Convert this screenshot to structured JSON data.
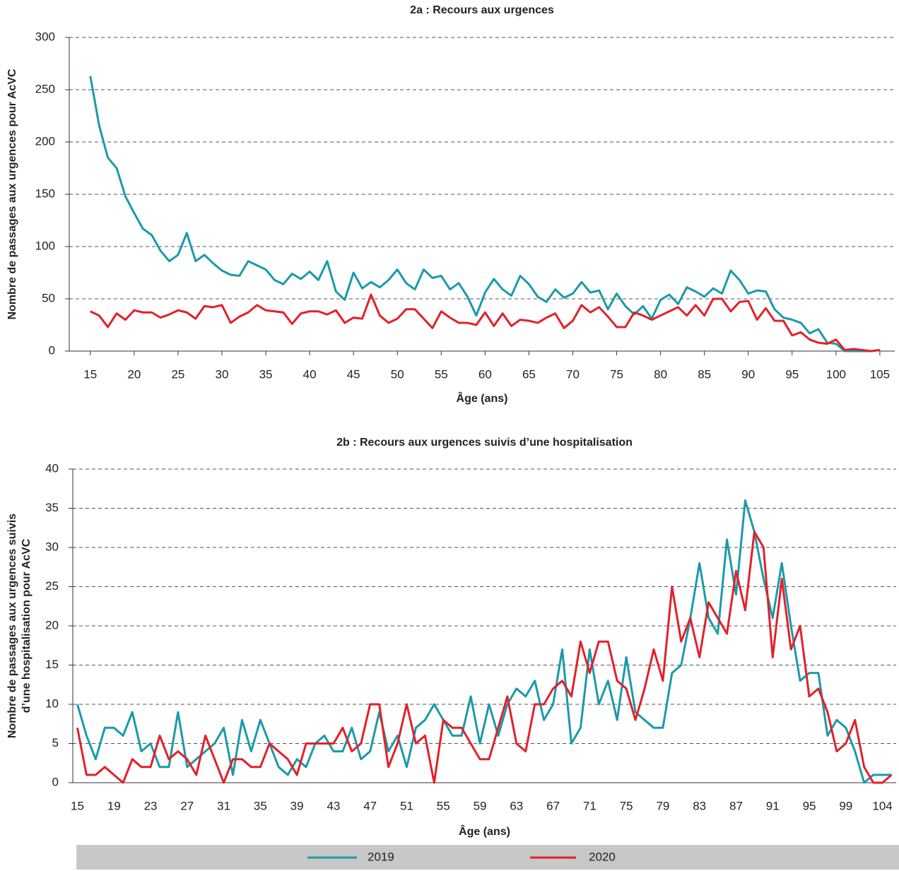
{
  "chart_data": [
    {
      "type": "line",
      "title": "2a : Recours aux urgences",
      "xlabel": "Âge (ans)",
      "ylabel": [
        "Nombre de passages aux urgences pour AcVC"
      ],
      "x": [
        15,
        16,
        17,
        18,
        19,
        20,
        21,
        22,
        23,
        24,
        25,
        26,
        27,
        28,
        29,
        30,
        31,
        32,
        33,
        34,
        35,
        36,
        37,
        38,
        39,
        40,
        41,
        42,
        43,
        44,
        45,
        46,
        47,
        48,
        49,
        50,
        51,
        52,
        53,
        54,
        55,
        56,
        57,
        58,
        59,
        60,
        61,
        62,
        63,
        64,
        65,
        66,
        67,
        68,
        69,
        70,
        71,
        72,
        73,
        74,
        75,
        76,
        77,
        78,
        79,
        80,
        81,
        82,
        83,
        84,
        85,
        86,
        87,
        88,
        89,
        90,
        91,
        92,
        93,
        94,
        95,
        96,
        97,
        98,
        99,
        100,
        101,
        102,
        103,
        104,
        105
      ],
      "series": [
        {
          "name": "2019",
          "color": "#1a9aaa",
          "values": [
            263,
            216,
            185,
            175,
            148,
            132,
            117,
            111,
            96,
            86,
            92,
            113,
            86,
            92,
            84,
            77,
            73,
            72,
            86,
            82,
            78,
            68,
            64,
            74,
            69,
            76,
            68,
            86,
            57,
            49,
            75,
            60,
            66,
            61,
            68,
            78,
            65,
            59,
            78,
            70,
            72,
            59,
            65,
            52,
            34,
            56,
            69,
            59,
            53,
            72,
            64,
            52,
            47,
            59,
            51,
            55,
            66,
            56,
            58,
            40,
            55,
            43,
            35,
            43,
            31,
            49,
            54,
            45,
            61,
            57,
            52,
            60,
            55,
            77,
            68,
            55,
            58,
            57,
            40,
            32,
            30,
            27,
            17,
            21,
            8,
            7,
            0,
            0,
            0,
            0,
            1
          ]
        },
        {
          "name": "2020",
          "color": "#e3202a",
          "values": [
            38,
            34,
            23,
            36,
            30,
            39,
            37,
            37,
            32,
            35,
            39,
            37,
            31,
            43,
            42,
            44,
            27,
            33,
            37,
            44,
            39,
            38,
            37,
            26,
            36,
            38,
            38,
            35,
            39,
            27,
            32,
            31,
            54,
            34,
            27,
            31,
            40,
            40,
            31,
            22,
            38,
            32,
            27,
            27,
            25,
            37,
            24,
            36,
            24,
            30,
            29,
            27,
            32,
            36,
            22,
            29,
            44,
            37,
            42,
            33,
            23,
            23,
            37,
            34,
            30,
            34,
            38,
            42,
            34,
            44,
            34,
            50,
            50,
            38,
            47,
            48,
            30,
            41,
            29,
            29,
            15,
            18,
            11,
            8,
            7,
            11,
            1,
            2,
            1,
            0,
            1
          ]
        }
      ],
      "xlim": [
        12.6,
        106.7
      ],
      "xticks": [
        15,
        20,
        25,
        30,
        35,
        40,
        45,
        50,
        55,
        60,
        65,
        70,
        75,
        80,
        85,
        90,
        95,
        100,
        105
      ],
      "ylim": [
        0,
        300
      ],
      "yticks": [
        0,
        50,
        100,
        150,
        200,
        250,
        300
      ],
      "grid": true
    },
    {
      "type": "line",
      "title": "2b : Recours aux urgences suivis d’une hospitalisation",
      "xlabel": "Âge (ans)",
      "ylabel": [
        "Nombre de passages aux urgences suivis",
        "d’une hospitalisation pour AcVC"
      ],
      "categories": [
        "15",
        null,
        null,
        null,
        "19",
        null,
        null,
        null,
        "23",
        null,
        null,
        null,
        "27",
        null,
        null,
        null,
        "31",
        null,
        null,
        null,
        "35",
        null,
        null,
        null,
        "39",
        null,
        null,
        null,
        "43",
        null,
        null,
        null,
        "47",
        null,
        null,
        null,
        "51",
        null,
        null,
        null,
        "55",
        null,
        null,
        null,
        "59",
        null,
        null,
        null,
        "63",
        null,
        null,
        null,
        "67",
        null,
        null,
        null,
        "71",
        null,
        null,
        null,
        "75",
        null,
        null,
        null,
        "79",
        null,
        null,
        null,
        "83",
        null,
        null,
        null,
        "87",
        null,
        null,
        null,
        "91",
        null,
        null,
        null,
        "95",
        null,
        null,
        null,
        "99",
        null,
        null,
        null,
        "104",
        null
      ],
      "series": [
        {
          "color": "#1a9aaa",
          "values": [
            10,
            6,
            3,
            7,
            7,
            6,
            9,
            4,
            5,
            2,
            2,
            9,
            2,
            3,
            4,
            5,
            7,
            1,
            8,
            4,
            8,
            5,
            2,
            1,
            3,
            2,
            5,
            6,
            4,
            4,
            7,
            3,
            4,
            9,
            4,
            6,
            2,
            7,
            8,
            10,
            8,
            6,
            6,
            11,
            5,
            10,
            6,
            10,
            12,
            11,
            13,
            8,
            10,
            17,
            5,
            7,
            17,
            10,
            13,
            8,
            16,
            9,
            8,
            7,
            7,
            14,
            15,
            21,
            28,
            21,
            19,
            31,
            24,
            36,
            32,
            26,
            21,
            28,
            20,
            13,
            14,
            14,
            6,
            8,
            7,
            4,
            0,
            1,
            1,
            1
          ]
        },
        {
          "color": "#e3202a",
          "values": [
            7,
            1,
            1,
            2,
            1,
            0,
            3,
            2,
            2,
            6,
            3,
            4,
            3,
            1,
            6,
            3,
            0,
            3,
            3,
            2,
            2,
            5,
            4,
            3,
            1,
            5,
            5,
            5,
            5,
            7,
            4,
            5,
            10,
            10,
            2,
            5,
            10,
            5,
            6,
            0,
            8,
            7,
            7,
            5,
            3,
            3,
            7,
            11,
            5,
            4,
            10,
            10,
            12,
            13,
            11,
            18,
            14,
            18,
            18,
            13,
            12,
            8,
            12,
            17,
            13,
            25,
            18,
            21,
            16,
            23,
            21,
            19,
            27,
            22,
            32,
            30,
            16,
            26,
            17,
            20,
            11,
            12,
            9,
            4,
            5,
            8,
            2,
            0,
            0,
            1
          ]
        }
      ],
      "ylim": [
        0,
        40
      ],
      "yticks": [
        0,
        5,
        10,
        15,
        20,
        25,
        30,
        35,
        40
      ],
      "grid": true
    }
  ]
}
